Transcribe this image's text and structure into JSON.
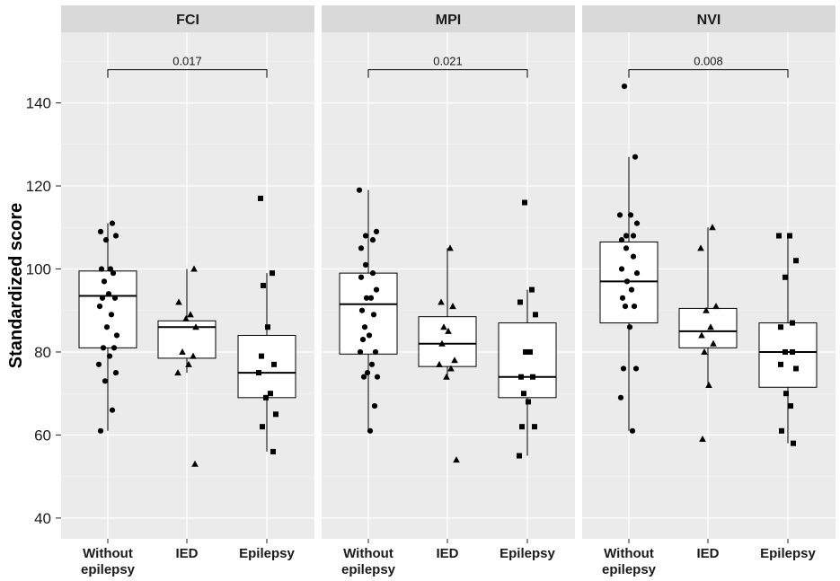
{
  "chart_data": {
    "type": "box",
    "ylabel": "Standardized score",
    "ylim": [
      35,
      157
    ],
    "yticks": [
      40,
      60,
      80,
      100,
      120,
      140
    ],
    "categories": [
      "Without\nepilepsy",
      "IED",
      "Epilepsy"
    ],
    "grid": true,
    "colors": {
      "panel_bg": "#ebebeb",
      "strip_bg": "#d9d9d9",
      "grid_major": "#ffffff",
      "box_fill": "#ffffff",
      "ink": "#000000"
    },
    "facets": [
      {
        "title": "FCI",
        "bracket": {
          "label": "0.017",
          "y": 148,
          "from": "Without\nepilepsy",
          "to": "Epilepsy"
        },
        "groups": [
          {
            "name": "Without\nepilepsy",
            "shape": "circle",
            "stats": {
              "lower_whisker": 61,
              "q1": 81,
              "median": 93.5,
              "q3": 99.5,
              "upper_whisker": 111
            },
            "points": [
              61,
              66,
              73,
              75,
              77,
              79,
              81,
              81,
              84,
              86,
              89,
              91,
              93,
              93,
              94,
              97,
              99,
              100,
              100,
              107,
              108,
              109,
              111
            ]
          },
          {
            "name": "IED",
            "shape": "triangle",
            "stats": {
              "lower_whisker": 75,
              "q1": 78.5,
              "median": 86,
              "q3": 87.5,
              "upper_whisker": 100
            },
            "points": [
              53,
              75,
              77,
              79,
              80,
              86,
              88,
              89,
              92,
              100
            ]
          },
          {
            "name": "Epilepsy",
            "shape": "square",
            "stats": {
              "lower_whisker": 56,
              "q1": 69,
              "median": 75,
              "q3": 84,
              "upper_whisker": 99
            },
            "points": [
              56,
              62,
              65,
              69,
              70,
              75,
              77,
              79,
              86,
              96,
              99,
              117
            ]
          }
        ]
      },
      {
        "title": "MPI",
        "bracket": {
          "label": "0.021",
          "y": 148,
          "from": "Without\nepilepsy",
          "to": "Epilepsy"
        },
        "groups": [
          {
            "name": "Without\nepilepsy",
            "shape": "circle",
            "stats": {
              "lower_whisker": 61,
              "q1": 79.5,
              "median": 91.5,
              "q3": 99,
              "upper_whisker": 119
            },
            "points": [
              61,
              67,
              74,
              74,
              75,
              77,
              80,
              80,
              83,
              84,
              86,
              89,
              90,
              93,
              93,
              95,
              98,
              99,
              101,
              105,
              107,
              108,
              109,
              119
            ]
          },
          {
            "name": "IED",
            "shape": "triangle",
            "stats": {
              "lower_whisker": 74,
              "q1": 76.5,
              "median": 82,
              "q3": 88.5,
              "upper_whisker": 105
            },
            "points": [
              54,
              74,
              76,
              77,
              78,
              82,
              85,
              86,
              91,
              92,
              105
            ]
          },
          {
            "name": "Epilepsy",
            "shape": "square",
            "stats": {
              "lower_whisker": 55,
              "q1": 69,
              "median": 74,
              "q3": 87,
              "upper_whisker": 95
            },
            "points": [
              55,
              62,
              62,
              68,
              70,
              74,
              74,
              80,
              80,
              89,
              92,
              95,
              116
            ]
          }
        ]
      },
      {
        "title": "NVI",
        "bracket": {
          "label": "0.008",
          "y": 148,
          "from": "Without\nepilepsy",
          "to": "Epilepsy"
        },
        "groups": [
          {
            "name": "Without\nepilepsy",
            "shape": "circle",
            "stats": {
              "lower_whisker": 61,
              "q1": 87,
              "median": 97,
              "q3": 106.5,
              "upper_whisker": 127
            },
            "points": [
              61,
              69,
              76,
              76,
              86,
              91,
              91,
              93,
              95,
              97,
              99,
              100,
              103,
              105,
              107,
              108,
              108,
              111,
              113,
              113,
              127,
              144
            ]
          },
          {
            "name": "IED",
            "shape": "triangle",
            "stats": {
              "lower_whisker": 72,
              "q1": 81,
              "median": 85,
              "q3": 90.5,
              "upper_whisker": 110
            },
            "points": [
              59,
              72,
              80,
              82,
              84,
              86,
              90,
              91,
              105,
              110
            ]
          },
          {
            "name": "Epilepsy",
            "shape": "square",
            "stats": {
              "lower_whisker": 58,
              "q1": 71.5,
              "median": 80,
              "q3": 87,
              "upper_whisker": 108
            },
            "points": [
              58,
              61,
              67,
              70,
              76,
              77,
              80,
              80,
              86,
              87,
              98,
              102,
              108,
              108
            ]
          }
        ]
      }
    ]
  }
}
